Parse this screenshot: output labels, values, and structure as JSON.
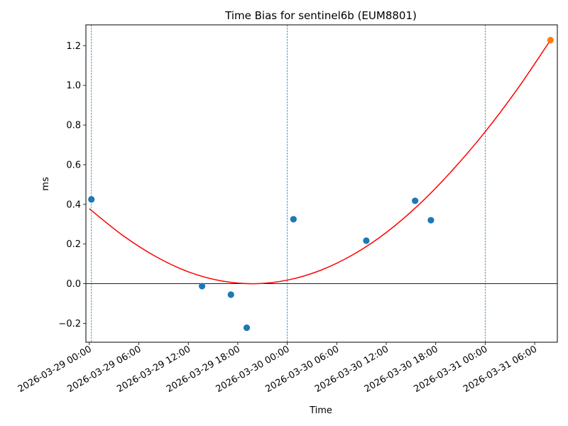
{
  "chart_data": {
    "type": "scatter",
    "title": "Time Bias for sentinel6b (EUM8801)",
    "xlabel": "Time",
    "ylabel": "ms",
    "x_range": [
      "2026-03-28 23:35",
      "2026-03-31 08:45"
    ],
    "ylim": [
      -0.295,
      1.305
    ],
    "y_ticks": [
      -0.2,
      0.0,
      0.2,
      0.4,
      0.6,
      0.8,
      1.0,
      1.2
    ],
    "y_tick_labels": [
      "−0.2",
      "0.0",
      "0.2",
      "0.4",
      "0.6",
      "0.8",
      "1.0",
      "1.2"
    ],
    "x_ticks": [
      "2026-03-29 00:00",
      "2026-03-29 06:00",
      "2026-03-29 12:00",
      "2026-03-29 18:00",
      "2026-03-30 00:00",
      "2026-03-30 06:00",
      "2026-03-30 12:00",
      "2026-03-30 18:00",
      "2026-03-31 00:00",
      "2026-03-31 06:00"
    ],
    "x_tick_labels": [
      "2026-03-29 00:00",
      "2026-03-29 06:00",
      "2026-03-29 12:00",
      "2026-03-29 18:00",
      "2026-03-30 00:00",
      "2026-03-30 06:00",
      "2026-03-30 12:00",
      "2026-03-30 18:00",
      "2026-03-31 00:00",
      "2026-03-31 06:00"
    ],
    "vertical_lines": [
      "2026-03-29 00:15",
      "2026-03-30 00:00",
      "2026-03-31 00:00"
    ],
    "horizontal_line": 0.0,
    "series": [
      {
        "kind": "scatter",
        "color": "#1f77b4",
        "points": [
          {
            "x": "2026-03-29 00:15",
            "y": 0.425
          },
          {
            "x": "2026-03-29 13:40",
            "y": -0.012
          },
          {
            "x": "2026-03-29 17:10",
            "y": -0.055
          },
          {
            "x": "2026-03-29 19:05",
            "y": -0.222
          },
          {
            "x": "2026-03-30 00:45",
            "y": 0.325
          },
          {
            "x": "2026-03-30 09:35",
            "y": 0.217
          },
          {
            "x": "2026-03-30 15:30",
            "y": 0.418
          },
          {
            "x": "2026-03-30 17:25",
            "y": 0.32
          }
        ]
      },
      {
        "kind": "scatter",
        "color": "#ff7f0e",
        "points": [
          {
            "x": "2026-03-31 07:55",
            "y": 1.228
          }
        ]
      },
      {
        "kind": "line",
        "color": "#ff0000",
        "points": [
          {
            "x": "2026-03-29 00:00",
            "y": 0.378
          },
          {
            "x": "2026-03-29 04:00",
            "y": 0.245
          },
          {
            "x": "2026-03-29 08:00",
            "y": 0.138
          },
          {
            "x": "2026-03-29 12:00",
            "y": 0.06
          },
          {
            "x": "2026-03-29 16:00",
            "y": 0.014
          },
          {
            "x": "2026-03-29 20:00",
            "y": 0.0
          },
          {
            "x": "2026-03-30 00:00",
            "y": 0.018
          },
          {
            "x": "2026-03-30 04:00",
            "y": 0.067
          },
          {
            "x": "2026-03-30 08:00",
            "y": 0.147
          },
          {
            "x": "2026-03-30 12:00",
            "y": 0.258
          },
          {
            "x": "2026-03-30 16:00",
            "y": 0.4
          },
          {
            "x": "2026-03-30 20:00",
            "y": 0.571
          },
          {
            "x": "2026-03-31 00:00",
            "y": 0.766
          },
          {
            "x": "2026-03-31 04:00",
            "y": 0.987
          },
          {
            "x": "2026-03-31 07:55",
            "y": 1.228
          }
        ]
      }
    ]
  }
}
